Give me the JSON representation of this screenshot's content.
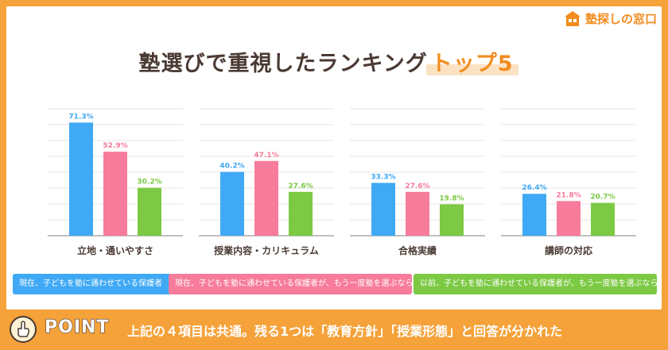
{
  "logo": {
    "text": "塾探しの窓口",
    "icon": "school-building-icon"
  },
  "title": {
    "main": "塾選びで重視したランキング",
    "highlight": "トップ5"
  },
  "chart_data": {
    "type": "bar",
    "categories": [
      "立地・通いやすさ",
      "授業内容・カリキュラム",
      "合格実績",
      "講師の対応"
    ],
    "series": [
      {
        "name": "現在、子どもを塾に通わせている保護者",
        "color": "#3fa9f5",
        "values": [
          71.3,
          40.2,
          33.3,
          26.4
        ]
      },
      {
        "name": "現在、子どもを塾に通わせている保護者が、もう一度塾を選ぶなら",
        "color": "#f77b9a",
        "values": [
          52.9,
          47.1,
          27.6,
          21.8
        ]
      },
      {
        "name": "以前、子どもを塾に通わせている保護者が、もう一度塾を選ぶなら",
        "color": "#7cc943",
        "values": [
          30.2,
          27.6,
          19.8,
          20.7
        ]
      }
    ],
    "value_suffix": "%",
    "ylim": [
      0,
      80
    ],
    "grid": true,
    "legend_position": "bottom"
  },
  "footer": {
    "point_label": "POINT",
    "summary": "上記の４項目は共通。残る1つは「教育方針」「授業形態」と回答が分かれた"
  }
}
